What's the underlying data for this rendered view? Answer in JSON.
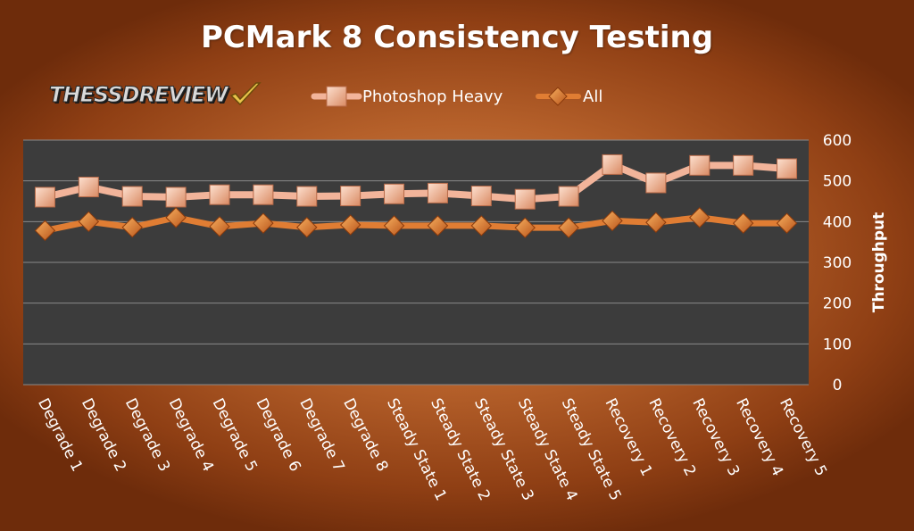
{
  "logo": {
    "text": "THESSDREVIEW"
  },
  "colors": {
    "photoshop": "#f2b49a",
    "all": "#e07d33",
    "plot_bg": "#3c3c3c",
    "grid": "#8a8a8a"
  },
  "chart_data": {
    "type": "line",
    "title": "PCMark 8 Consistency Testing",
    "ylabel": "Throughput",
    "xlabel": "",
    "ylim": [
      0,
      600
    ],
    "yticks": [
      0,
      100,
      200,
      300,
      400,
      500,
      600
    ],
    "y_axis_side": "right",
    "grid": true,
    "legend_position": "top",
    "categories": [
      "Degrade 1",
      "Degrade 2",
      "Degrade 3",
      "Degrade 4",
      "Degrade 5",
      "Degrade 6",
      "Degrade 7",
      "Degrade 8",
      "Steady State 1",
      "Steady State 2",
      "Steady State 3",
      "Steady State 4",
      "Steady State 5",
      "Recovery 1",
      "Recovery 2",
      "Recovery 3",
      "Recovery 4",
      "Recovery 5"
    ],
    "series": [
      {
        "name": "Photoshop Heavy",
        "marker": "square",
        "values": [
          460,
          485,
          462,
          460,
          466,
          466,
          462,
          463,
          468,
          470,
          463,
          455,
          462,
          540,
          495,
          538,
          538,
          530
        ]
      },
      {
        "name": "All",
        "marker": "diamond",
        "values": [
          378,
          400,
          386,
          410,
          388,
          396,
          386,
          392,
          390,
          390,
          390,
          385,
          385,
          402,
          398,
          410,
          396,
          396
        ]
      }
    ]
  }
}
